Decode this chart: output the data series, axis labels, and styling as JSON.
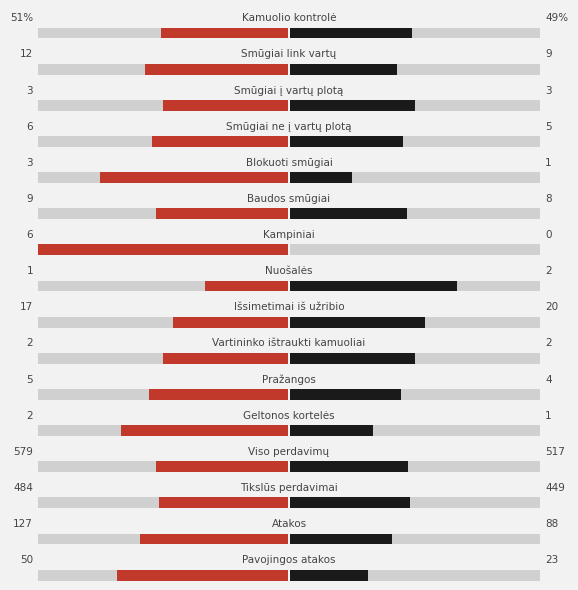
{
  "categories": [
    "Kamuolio kontrolė",
    "Smūgiai link vartų",
    "Smūgiai į vartų plotą",
    "Smūgiai ne į vartų plotą",
    "Blokuoti smūgiai",
    "Baudos smūgiai",
    "Kampiniai",
    "Nuošalės",
    "Išsimetimai iš užribio",
    "Vartininko ištraukti kamuoliai",
    "Pražangos",
    "Geltonos kortelės",
    "Viso perdavimų",
    "Tikslūs perdavimai",
    "Atakos",
    "Pavojingos atakos"
  ],
  "left_labels": [
    "51%",
    "12",
    "3",
    "6",
    "3",
    "9",
    "6",
    "1",
    "17",
    "2",
    "5",
    "2",
    "579",
    "484",
    "127",
    "50"
  ],
  "right_labels": [
    "49%",
    "9",
    "3",
    "5",
    "1",
    "8",
    "0",
    "2",
    "20",
    "2",
    "4",
    "1",
    "517",
    "449",
    "88",
    "23"
  ],
  "left_values": [
    51,
    12,
    3,
    6,
    3,
    9,
    6,
    1,
    17,
    2,
    5,
    2,
    579,
    484,
    127,
    50
  ],
  "right_values": [
    49,
    9,
    3,
    5,
    1,
    8,
    0,
    2,
    20,
    2,
    4,
    1,
    517,
    449,
    88,
    23
  ],
  "max_values": [
    100,
    21,
    6,
    11,
    4,
    17,
    6,
    3,
    37,
    4,
    9,
    3,
    1096,
    933,
    215,
    73
  ],
  "red_color": "#c0392b",
  "black_color": "#1a1a1a",
  "gray_bg": "#d0d0d0",
  "bg_color": "#f2f2f2",
  "white_sep": "#f2f2f2",
  "text_color": "#444444",
  "num_color": "#444444",
  "cat_fontsize": 7.5,
  "num_fontsize": 7.5
}
